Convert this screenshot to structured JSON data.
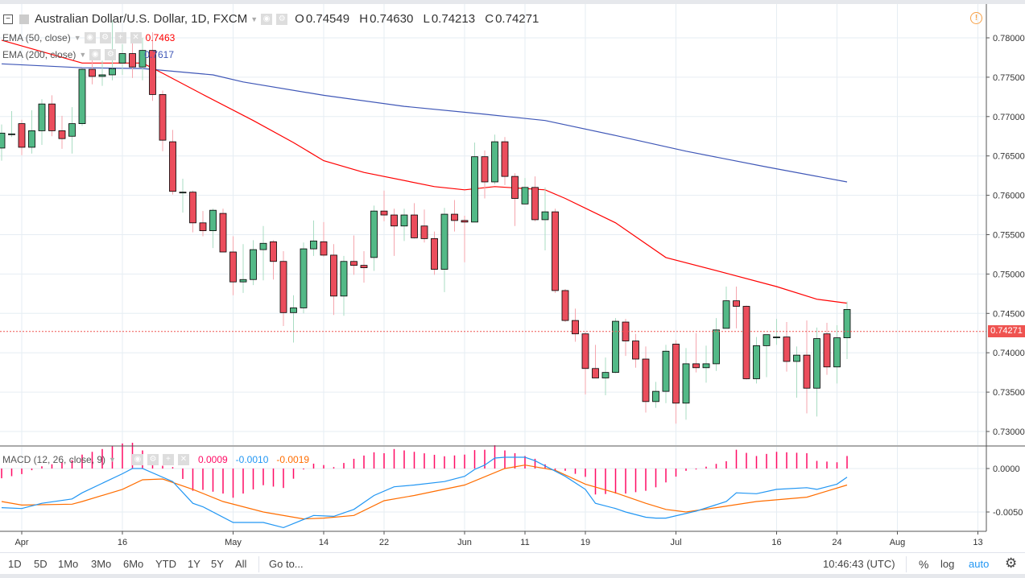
{
  "header": {
    "symbol_title": "Australian Dollar/U.S. Dollar, 1D, FXCM",
    "ohlc": {
      "o_label": "O",
      "o": "0.74549",
      "h_label": "H",
      "h": "0.74630",
      "l_label": "L",
      "l": "0.74213",
      "c_label": "C",
      "c": "0.74271"
    }
  },
  "indicators": {
    "ema50": {
      "label": "EMA (50, close)",
      "value": "0.7463",
      "color": "#ff0000"
    },
    "ema200": {
      "label": "EMA (200, close)",
      "value": "0.7617",
      "color": "#3f57b7"
    },
    "macd": {
      "label": "MACD (12, 26, close, 9)",
      "hist": "0.0009",
      "macd": "-0.0010",
      "signal": "-0.0019",
      "hist_color": "#ff0a64",
      "macd_color": "#2196f3",
      "signal_color": "#ff6d00"
    }
  },
  "price_tag": "0.74271",
  "toolbar": {
    "ranges": [
      "1D",
      "5D",
      "1Mo",
      "3Mo",
      "6Mo",
      "YTD",
      "1Y",
      "5Y",
      "All"
    ],
    "goto": "Go to...",
    "clock": "10:46:43 (UTC)",
    "percent": "%",
    "log": "log",
    "auto": "auto"
  },
  "colors": {
    "up": "#53b987",
    "down": "#eb4d5c",
    "up_wick": "#a9dcc3",
    "down_wick": "#f5a6ae",
    "grid": "#e6edf3",
    "last_price": "#ef5350",
    "auto_active": "#2196f3"
  },
  "chart_data": {
    "type": "candlestick",
    "year": 2018,
    "price_axis": {
      "ticks": [
        "0.78000",
        "0.77500",
        "0.77000",
        "0.76500",
        "0.76000",
        "0.75500",
        "0.75000",
        "0.74500",
        "0.74000",
        "0.73500",
        "0.73000"
      ],
      "range": [
        0.728,
        0.7845
      ]
    },
    "macd_axis": {
      "ticks": [
        "0.0000",
        "-0.0050"
      ]
    },
    "x_ticks": [
      {
        "label": "Apr",
        "date": "04-02"
      },
      {
        "label": "16",
        "date": "04-16"
      },
      {
        "label": "May",
        "date": "05-01"
      },
      {
        "label": "14",
        "date": "05-14"
      },
      {
        "label": "22",
        "date": "05-22"
      },
      {
        "label": "Jun",
        "date": "06-01"
      },
      {
        "label": "11",
        "date": "06-11"
      },
      {
        "label": "19",
        "date": "06-19"
      },
      {
        "label": "Jul",
        "date": "07-02"
      },
      {
        "label": "16",
        "date": "07-16"
      },
      {
        "label": "24",
        "date": "07-24"
      },
      {
        "label": "Aug",
        "date": "08-01"
      },
      {
        "label": "13",
        "date": "08-13"
      }
    ],
    "last_price": 0.74271,
    "candles_columns": [
      "date",
      "open",
      "high",
      "low",
      "close"
    ],
    "candles": [
      [
        "03-29",
        0.766,
        0.769,
        0.7644,
        0.7679
      ],
      [
        "03-30",
        0.7678,
        0.7707,
        0.7674,
        0.7678
      ],
      [
        "04-02",
        0.7691,
        0.7696,
        0.7651,
        0.7661
      ],
      [
        "04-03",
        0.7661,
        0.7708,
        0.7653,
        0.7682
      ],
      [
        "04-04",
        0.7682,
        0.7722,
        0.7664,
        0.7716
      ],
      [
        "04-05",
        0.7716,
        0.7727,
        0.7675,
        0.7682
      ],
      [
        "04-06",
        0.7682,
        0.7701,
        0.7659,
        0.7672
      ],
      [
        "04-09",
        0.7675,
        0.7712,
        0.7653,
        0.7691
      ],
      [
        "04-10",
        0.7691,
        0.7761,
        0.7688,
        0.776
      ],
      [
        "04-11",
        0.776,
        0.7774,
        0.7741,
        0.7751
      ],
      [
        "04-12",
        0.7751,
        0.7771,
        0.7739,
        0.7753
      ],
      [
        "04-13",
        0.7753,
        0.7822,
        0.7746,
        0.7761
      ],
      [
        "04-16",
        0.7768,
        0.7792,
        0.7753,
        0.778
      ],
      [
        "04-17",
        0.778,
        0.7799,
        0.7749,
        0.7763
      ],
      [
        "04-18",
        0.7763,
        0.78,
        0.7746,
        0.7784
      ],
      [
        "04-19",
        0.7784,
        0.7807,
        0.772,
        0.7728
      ],
      [
        "04-20",
        0.7728,
        0.7733,
        0.7656,
        0.767
      ],
      [
        "04-23",
        0.7668,
        0.7683,
        0.7601,
        0.7605
      ],
      [
        "04-24",
        0.7604,
        0.7621,
        0.7578,
        0.7604
      ],
      [
        "04-25",
        0.7604,
        0.7606,
        0.7553,
        0.7565
      ],
      [
        "04-26",
        0.7565,
        0.758,
        0.7548,
        0.7555
      ],
      [
        "04-27",
        0.7555,
        0.7583,
        0.7533,
        0.7581
      ],
      [
        "04-30",
        0.7577,
        0.7583,
        0.7528,
        0.7528
      ],
      [
        "05-01",
        0.7528,
        0.7548,
        0.7473,
        0.749
      ],
      [
        "05-02",
        0.749,
        0.7538,
        0.7476,
        0.7493
      ],
      [
        "05-03",
        0.7493,
        0.7543,
        0.7486,
        0.7531
      ],
      [
        "05-04",
        0.7531,
        0.7561,
        0.7492,
        0.7539
      ],
      [
        "05-07",
        0.7541,
        0.7543,
        0.7493,
        0.7516
      ],
      [
        "05-08",
        0.7516,
        0.7529,
        0.7434,
        0.7451
      ],
      [
        "05-09",
        0.7451,
        0.7473,
        0.7413,
        0.7457
      ],
      [
        "05-10",
        0.7457,
        0.754,
        0.745,
        0.7532
      ],
      [
        "05-11",
        0.7532,
        0.7568,
        0.7523,
        0.7542
      ],
      [
        "05-14",
        0.7541,
        0.7566,
        0.7522,
        0.7524
      ],
      [
        "05-15",
        0.7524,
        0.7538,
        0.7448,
        0.7472
      ],
      [
        "05-16",
        0.7472,
        0.7523,
        0.7447,
        0.7516
      ],
      [
        "05-17",
        0.7516,
        0.7549,
        0.7499,
        0.7511
      ],
      [
        "05-18",
        0.7511,
        0.7529,
        0.7489,
        0.7508
      ],
      [
        "05-21",
        0.7521,
        0.7587,
        0.7504,
        0.758
      ],
      [
        "05-22",
        0.758,
        0.7606,
        0.7567,
        0.7575
      ],
      [
        "05-23",
        0.7575,
        0.7583,
        0.7523,
        0.7561
      ],
      [
        "05-24",
        0.7561,
        0.7583,
        0.7542,
        0.7575
      ],
      [
        "05-25",
        0.7575,
        0.759,
        0.7545,
        0.7546
      ],
      [
        "05-28",
        0.7561,
        0.7582,
        0.754,
        0.7545
      ],
      [
        "05-29",
        0.7545,
        0.7554,
        0.7499,
        0.7506
      ],
      [
        "05-30",
        0.7506,
        0.7584,
        0.7477,
        0.7576
      ],
      [
        "05-31",
        0.7576,
        0.7594,
        0.7554,
        0.7568
      ],
      [
        "06-01",
        0.7568,
        0.7574,
        0.7515,
        0.7566
      ],
      [
        "06-04",
        0.7566,
        0.7667,
        0.7566,
        0.7649
      ],
      [
        "06-05",
        0.7649,
        0.7657,
        0.7596,
        0.7617
      ],
      [
        "06-06",
        0.7617,
        0.7677,
        0.7614,
        0.7668
      ],
      [
        "06-07",
        0.7668,
        0.7674,
        0.7613,
        0.7624
      ],
      [
        "06-08",
        0.7624,
        0.7628,
        0.7561,
        0.7596
      ],
      [
        "06-11",
        0.7589,
        0.7622,
        0.7589,
        0.761
      ],
      [
        "06-12",
        0.761,
        0.7624,
        0.7567,
        0.7569
      ],
      [
        "06-13",
        0.7569,
        0.761,
        0.753,
        0.7579
      ],
      [
        "06-14",
        0.7579,
        0.7583,
        0.7476,
        0.7479
      ],
      [
        "06-15",
        0.7479,
        0.7481,
        0.7439,
        0.7441
      ],
      [
        "06-18",
        0.7441,
        0.7456,
        0.7414,
        0.7424
      ],
      [
        "06-19",
        0.7424,
        0.7427,
        0.7347,
        0.738
      ],
      [
        "06-20",
        0.738,
        0.741,
        0.7368,
        0.7368
      ],
      [
        "06-21",
        0.7368,
        0.7394,
        0.7346,
        0.7375
      ],
      [
        "06-22",
        0.7375,
        0.7444,
        0.7374,
        0.744
      ],
      [
        "06-25",
        0.7439,
        0.7443,
        0.7396,
        0.7415
      ],
      [
        "06-26",
        0.7415,
        0.7424,
        0.7381,
        0.7392
      ],
      [
        "06-27",
        0.7392,
        0.7408,
        0.7324,
        0.7338
      ],
      [
        "06-28",
        0.7338,
        0.7363,
        0.733,
        0.7351
      ],
      [
        "06-29",
        0.7351,
        0.741,
        0.7336,
        0.7402
      ],
      [
        "07-02",
        0.7411,
        0.7416,
        0.731,
        0.7336
      ],
      [
        "07-03",
        0.7336,
        0.7406,
        0.7315,
        0.7386
      ],
      [
        "07-04",
        0.7386,
        0.7425,
        0.7375,
        0.7381
      ],
      [
        "07-05",
        0.7381,
        0.7409,
        0.7362,
        0.7386
      ],
      [
        "07-06",
        0.7386,
        0.7444,
        0.7377,
        0.7429
      ],
      [
        "07-09",
        0.7431,
        0.7484,
        0.7431,
        0.7466
      ],
      [
        "07-10",
        0.7466,
        0.7484,
        0.7431,
        0.7459
      ],
      [
        "07-11",
        0.7459,
        0.746,
        0.7366,
        0.7367
      ],
      [
        "07-12",
        0.7367,
        0.742,
        0.7361,
        0.7409
      ],
      [
        "07-13",
        0.7409,
        0.7423,
        0.7369,
        0.7423
      ],
      [
        "07-16",
        0.742,
        0.7443,
        0.741,
        0.742
      ],
      [
        "07-17",
        0.742,
        0.7439,
        0.7376,
        0.7389
      ],
      [
        "07-18",
        0.7389,
        0.7408,
        0.7343,
        0.7397
      ],
      [
        "07-19",
        0.7397,
        0.7441,
        0.7323,
        0.7355
      ],
      [
        "07-20",
        0.7355,
        0.7432,
        0.7319,
        0.7418
      ],
      [
        "07-23",
        0.7424,
        0.7438,
        0.7372,
        0.7382
      ],
      [
        "07-24",
        0.7382,
        0.7435,
        0.7361,
        0.7419
      ],
      [
        "07-25",
        0.7419,
        0.7465,
        0.7392,
        0.7455
      ]
    ],
    "ema50": [
      [
        "03-29",
        0.7797
      ],
      [
        "04-10",
        0.7768
      ],
      [
        "04-18",
        0.7768
      ],
      [
        "04-20",
        0.7755
      ],
      [
        "04-26",
        0.7728
      ],
      [
        "05-03",
        0.7695
      ],
      [
        "05-09",
        0.7667
      ],
      [
        "05-14",
        0.7644
      ],
      [
        "05-18",
        0.7629
      ],
      [
        "05-29",
        0.7611
      ],
      [
        "06-01",
        0.7607
      ],
      [
        "06-06",
        0.7611
      ],
      [
        "06-13",
        0.7607
      ],
      [
        "06-15",
        0.7596
      ],
      [
        "06-22",
        0.7565
      ],
      [
        "06-29",
        0.7521
      ],
      [
        "07-09",
        0.7501
      ],
      [
        "07-16",
        0.7484
      ],
      [
        "07-20",
        0.7468
      ],
      [
        "07-25",
        0.7463
      ]
    ],
    "ema200": [
      [
        "03-29",
        0.7767
      ],
      [
        "04-10",
        0.7762
      ],
      [
        "04-18",
        0.7761
      ],
      [
        "04-27",
        0.7753
      ],
      [
        "05-02",
        0.7744
      ],
      [
        "05-14",
        0.7727
      ],
      [
        "05-24",
        0.7713
      ],
      [
        "06-05",
        0.7703
      ],
      [
        "06-13",
        0.7695
      ],
      [
        "06-22",
        0.7676
      ],
      [
        "07-03",
        0.7656
      ],
      [
        "07-13",
        0.7636
      ],
      [
        "07-25",
        0.7617
      ]
    ],
    "macd": [
      [
        "03-29",
        -0.0045
      ],
      [
        "04-02",
        -0.0046
      ],
      [
        "04-04",
        -0.004
      ],
      [
        "04-09",
        -0.0035
      ],
      [
        "04-10",
        -0.0028
      ],
      [
        "04-16",
        -0.0006
      ],
      [
        "04-17",
        0.0
      ],
      [
        "04-18",
        0.0
      ],
      [
        "04-23",
        -0.0015
      ],
      [
        "04-25",
        -0.004
      ],
      [
        "04-26",
        -0.0044
      ],
      [
        "05-01",
        -0.0062
      ],
      [
        "05-04",
        -0.0062
      ],
      [
        "05-08",
        -0.0068
      ],
      [
        "05-11",
        -0.0054
      ],
      [
        "05-15",
        -0.0055
      ],
      [
        "05-17",
        -0.0047
      ],
      [
        "05-21",
        -0.0031
      ],
      [
        "05-23",
        -0.0021
      ],
      [
        "05-25",
        -0.0019
      ],
      [
        "05-30",
        -0.0015
      ],
      [
        "06-01",
        -0.0009
      ],
      [
        "06-04",
        -0.0001
      ],
      [
        "06-05",
        0.0004
      ],
      [
        "06-06",
        0.0012
      ],
      [
        "06-07",
        0.0013
      ],
      [
        "06-11",
        0.0013
      ],
      [
        "06-12",
        0.0009
      ],
      [
        "06-15",
        -0.0009
      ],
      [
        "06-19",
        -0.0024
      ],
      [
        "06-20",
        -0.004
      ],
      [
        "06-22",
        -0.0046
      ],
      [
        "06-25",
        -0.005
      ],
      [
        "06-27",
        -0.0056
      ],
      [
        "06-28",
        -0.0057
      ],
      [
        "06-29",
        -0.0057
      ],
      [
        "07-04",
        -0.0049
      ],
      [
        "07-09",
        -0.0038
      ],
      [
        "07-10",
        -0.0028
      ],
      [
        "07-12",
        -0.0029
      ],
      [
        "07-16",
        -0.0024
      ],
      [
        "07-19",
        -0.0022
      ],
      [
        "07-20",
        -0.0024
      ],
      [
        "07-23",
        -0.0021
      ],
      [
        "07-24",
        -0.0018
      ],
      [
        "07-25",
        -0.001
      ]
    ],
    "signal": [
      [
        "03-29",
        -0.0038
      ],
      [
        "04-02",
        -0.0042
      ],
      [
        "04-09",
        -0.0041
      ],
      [
        "04-10",
        -0.0038
      ],
      [
        "04-16",
        -0.0024
      ],
      [
        "04-18",
        -0.0013
      ],
      [
        "04-20",
        -0.0012
      ],
      [
        "04-25",
        -0.0024
      ],
      [
        "04-30",
        -0.0038
      ],
      [
        "05-04",
        -0.005
      ],
      [
        "05-10",
        -0.0058
      ],
      [
        "05-14",
        -0.0057
      ],
      [
        "05-17",
        -0.0054
      ],
      [
        "05-22",
        -0.0037
      ],
      [
        "05-25",
        -0.0031
      ],
      [
        "06-01",
        -0.0019
      ],
      [
        "06-07",
        0.0
      ],
      [
        "06-11",
        0.0004
      ],
      [
        "06-14",
        -0.0002
      ],
      [
        "06-19",
        -0.0018
      ],
      [
        "06-22",
        -0.0028
      ],
      [
        "06-27",
        -0.004
      ],
      [
        "06-29",
        -0.0047
      ],
      [
        "07-03",
        -0.005
      ],
      [
        "07-06",
        -0.0045
      ],
      [
        "07-12",
        -0.0038
      ],
      [
        "07-19",
        -0.0033
      ],
      [
        "07-23",
        -0.0026
      ],
      [
        "07-25",
        -0.0019
      ]
    ]
  }
}
